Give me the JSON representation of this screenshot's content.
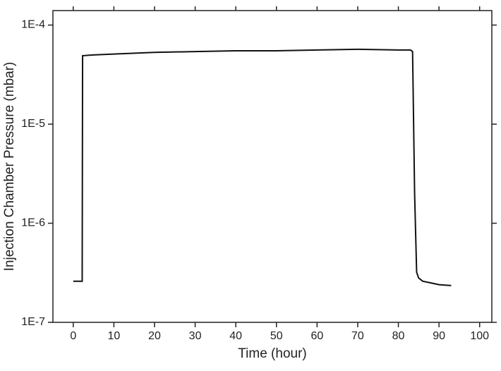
{
  "chart_data": {
    "type": "line",
    "x_label": "Time (hour)",
    "y_label": "Injection Chamber Pressure (mbar)",
    "xlim": [
      -5,
      103
    ],
    "ylim": [
      1e-07,
      0.00014
    ],
    "xticks": [
      0,
      10,
      20,
      30,
      40,
      50,
      60,
      70,
      80,
      90,
      100
    ],
    "yticks": [
      {
        "value": 1e-07,
        "label": "1E-7"
      },
      {
        "value": 1e-06,
        "label": "1E-6"
      },
      {
        "value": 1e-05,
        "label": "1E-5"
      },
      {
        "value": 0.0001,
        "label": "1E-4"
      }
    ],
    "ylog": true,
    "grid": false,
    "series": [
      {
        "color": "#111111",
        "x": [
          0,
          2.2,
          2.3,
          5,
          10,
          20,
          30,
          40,
          50,
          60,
          70,
          80,
          83,
          83.5,
          84,
          84.5,
          85,
          86,
          88,
          90,
          93
        ],
        "values": [
          2.6e-07,
          2.6e-07,
          4.9e-05,
          5e-05,
          5.1e-05,
          5.3e-05,
          5.4e-05,
          5.5e-05,
          5.5e-05,
          5.6e-05,
          5.7e-05,
          5.6e-05,
          5.6e-05,
          5.4e-05,
          2e-06,
          3.2e-07,
          2.8e-07,
          2.6e-07,
          2.5e-07,
          2.4e-07,
          2.35e-07
        ]
      }
    ]
  }
}
